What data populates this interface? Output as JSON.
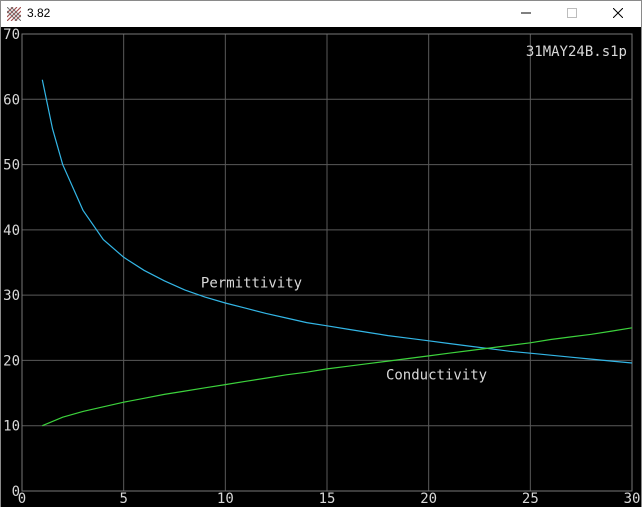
{
  "window": {
    "title": "3.82",
    "app_icon": "app-icon",
    "controls": {
      "minimize": "minimize-icon",
      "maximize": "maximize-icon",
      "close": "close-icon"
    }
  },
  "chart_data": {
    "type": "line",
    "title": "31MAY24B.s1p",
    "xlim": [
      0,
      30
    ],
    "ylim": [
      0,
      70
    ],
    "xticks": [
      "0",
      "5",
      "10",
      "15",
      "20",
      "25",
      "30"
    ],
    "yticks": [
      "0",
      "10",
      "20",
      "30",
      "40",
      "50",
      "60",
      "70"
    ],
    "grid": true,
    "series": [
      {
        "name": "Permittivity",
        "color": "#33b6e6",
        "x": [
          1,
          1.5,
          2,
          3,
          4,
          5,
          6,
          7,
          8,
          9,
          10,
          11,
          12,
          13,
          14,
          15,
          16,
          17,
          18,
          19,
          20,
          21,
          22,
          23,
          24,
          25,
          26,
          27,
          28,
          29,
          30
        ],
        "y": [
          63,
          55.5,
          50,
          43,
          38.5,
          35.8,
          33.8,
          32.2,
          30.8,
          29.7,
          28.8,
          28,
          27.2,
          26.5,
          25.8,
          25.3,
          24.8,
          24.3,
          23.8,
          23.4,
          23,
          22.6,
          22.2,
          21.8,
          21.4,
          21.1,
          20.8,
          20.5,
          20.2,
          19.9,
          19.6
        ]
      },
      {
        "name": "Conductivity",
        "color": "#3cd23c",
        "x": [
          1,
          2,
          3,
          4,
          5,
          6,
          7,
          8,
          9,
          10,
          11,
          12,
          13,
          14,
          15,
          16,
          17,
          18,
          19,
          20,
          21,
          22,
          23,
          24,
          25,
          26,
          27,
          28,
          29,
          30
        ],
        "y": [
          10,
          11.3,
          12.2,
          12.9,
          13.6,
          14.2,
          14.8,
          15.3,
          15.8,
          16.3,
          16.8,
          17.3,
          17.8,
          18.2,
          18.7,
          19.1,
          19.5,
          19.9,
          20.3,
          20.7,
          21.1,
          21.5,
          21.9,
          22.3,
          22.7,
          23.2,
          23.6,
          24.0,
          24.5,
          25.0
        ]
      }
    ]
  }
}
